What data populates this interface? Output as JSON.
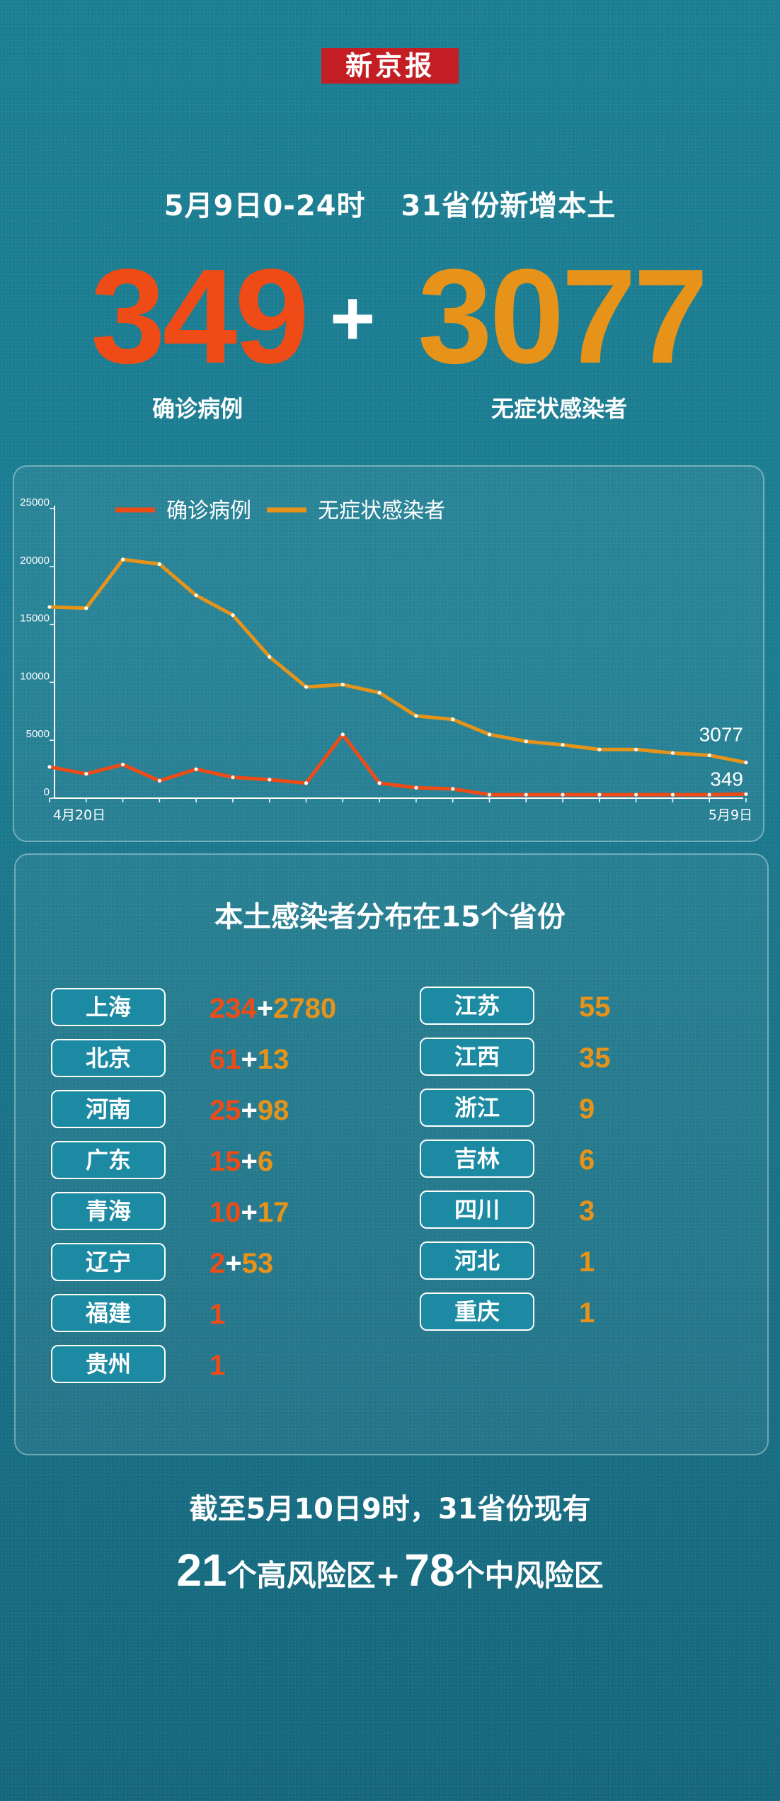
{
  "brand": {
    "logo_text": "新京报",
    "logo_color": "#c41e25"
  },
  "headline": {
    "date": "5月9日0-24时",
    "scope": "31省份新增本土"
  },
  "totals": {
    "confirmed": "349",
    "plus": "+",
    "asymptomatic": "3077",
    "confirmed_label": "确诊病例",
    "asymptomatic_label": "无症状感染者",
    "confirmed_color": "#ee4b17",
    "asymptomatic_color": "#e79319"
  },
  "chart_data": {
    "type": "line",
    "x": [
      "4月20日",
      "4月21日",
      "4月22日",
      "4月23日",
      "4月24日",
      "4月25日",
      "4月26日",
      "4月27日",
      "4月28日",
      "4月29日",
      "4月30日",
      "5月1日",
      "5月2日",
      "5月3日",
      "5月4日",
      "5月5日",
      "5月6日",
      "5月7日",
      "5月8日",
      "5月9日"
    ],
    "x_tick_labels": [
      "4月20日",
      "5月9日"
    ],
    "ylim": [
      0,
      25000
    ],
    "y_ticks": [
      "0",
      "5000",
      "10000",
      "15000",
      "20000",
      "25000"
    ],
    "legend_position": "top",
    "grid": false,
    "series": [
      {
        "name": "确诊病例",
        "color": "#ee4b17",
        "values": [
          2700,
          2100,
          2900,
          1500,
          2500,
          1800,
          1600,
          1300,
          5500,
          1300,
          900,
          800,
          300,
          300,
          300,
          300,
          300,
          300,
          300,
          349
        ],
        "end_label": "349"
      },
      {
        "name": "无症状感染者",
        "color": "#e79319",
        "values": [
          16500,
          16400,
          20600,
          20200,
          17500,
          15800,
          12200,
          9600,
          9800,
          9100,
          7100,
          6800,
          5500,
          4900,
          4600,
          4200,
          4200,
          3900,
          3700,
          3077
        ],
        "end_label": "3077"
      }
    ]
  },
  "distribution": {
    "title": "本土感染者分布在15个省份",
    "left": [
      {
        "name": "上海",
        "confirmed": "234",
        "asym": "2780"
      },
      {
        "name": "北京",
        "confirmed": "61",
        "asym": "13"
      },
      {
        "name": "河南",
        "confirmed": "25",
        "asym": "98"
      },
      {
        "name": "广东",
        "confirmed": "15",
        "asym": "6"
      },
      {
        "name": "青海",
        "confirmed": "10",
        "asym": "17"
      },
      {
        "name": "辽宁",
        "confirmed": "2",
        "asym": "53"
      },
      {
        "name": "福建",
        "confirmed": "1"
      },
      {
        "name": "贵州",
        "confirmed": "1"
      }
    ],
    "right": [
      {
        "name": "江苏",
        "asym": "55"
      },
      {
        "name": "江西",
        "asym": "35"
      },
      {
        "name": "浙江",
        "asym": "9"
      },
      {
        "name": "吉林",
        "asym": "6"
      },
      {
        "name": "四川",
        "asym": "3"
      },
      {
        "name": "河北",
        "asym": "1"
      },
      {
        "name": "重庆",
        "asym": "1"
      }
    ]
  },
  "footer": {
    "line1": "截至5月10日9时，31省份现有",
    "high_count": "21",
    "high_label": "个高风险区+",
    "mid_count": "78",
    "mid_label": "个中风险区"
  }
}
